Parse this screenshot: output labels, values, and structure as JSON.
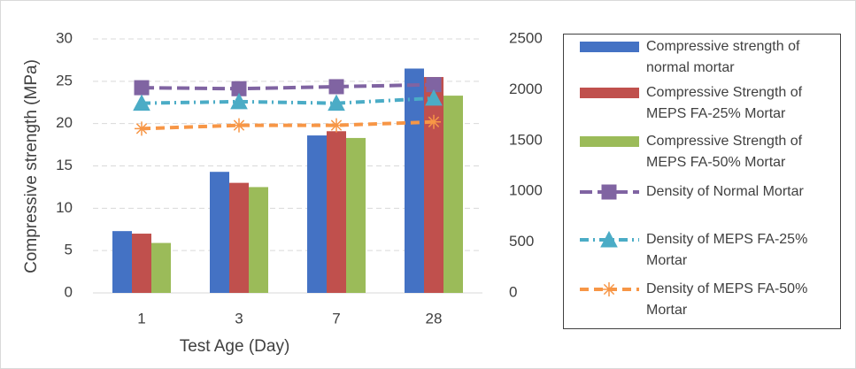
{
  "chart_data": {
    "type": "bar",
    "categories": [
      "1",
      "3",
      "7",
      "28"
    ],
    "x_label": "Test Age (Day)",
    "y_label": "Compressive strength (MPa)",
    "ylim": [
      0,
      30
    ],
    "yticks": [
      0,
      5,
      10,
      15,
      20,
      25,
      30
    ],
    "y2lim": [
      0,
      2500
    ],
    "y2ticks": [
      0,
      500,
      1000,
      1500,
      2000,
      2500
    ],
    "grid": true,
    "legend": "right",
    "series": [
      {
        "name": "Compressive strength of normal mortar",
        "color": "#4472c4",
        "values": [
          7.3,
          14.3,
          18.6,
          26.5
        ]
      },
      {
        "name": "Compressive Strength of MEPS FA-25% Mortar",
        "color": "#c0504d",
        "values": [
          7.0,
          13.0,
          19.1,
          25.5
        ]
      },
      {
        "name": "Compressive Strength of MEPS FA-50% Mortar",
        "color": "#9bbb59",
        "values": [
          5.9,
          12.5,
          18.3,
          23.3
        ]
      },
      {
        "name": "Density of Normal Mortar",
        "color": "#8064a2",
        "axis": "y2",
        "marker": "square",
        "line_style": "long-dash",
        "values": [
          2020,
          2010,
          2030,
          2050
        ]
      },
      {
        "name": "Density of MEPS FA-25% Mortar",
        "color": "#4bacc6",
        "axis": "y2",
        "marker": "triangle",
        "line_style": "dash-dot",
        "values": [
          1867,
          1883,
          1867,
          1917
        ]
      },
      {
        "name": "Density of MEPS FA-50% Mortar",
        "color": "#f79646",
        "axis": "y2",
        "marker": "asterisk",
        "line_style": "dash",
        "values": [
          1617,
          1650,
          1650,
          1683
        ]
      }
    ]
  }
}
